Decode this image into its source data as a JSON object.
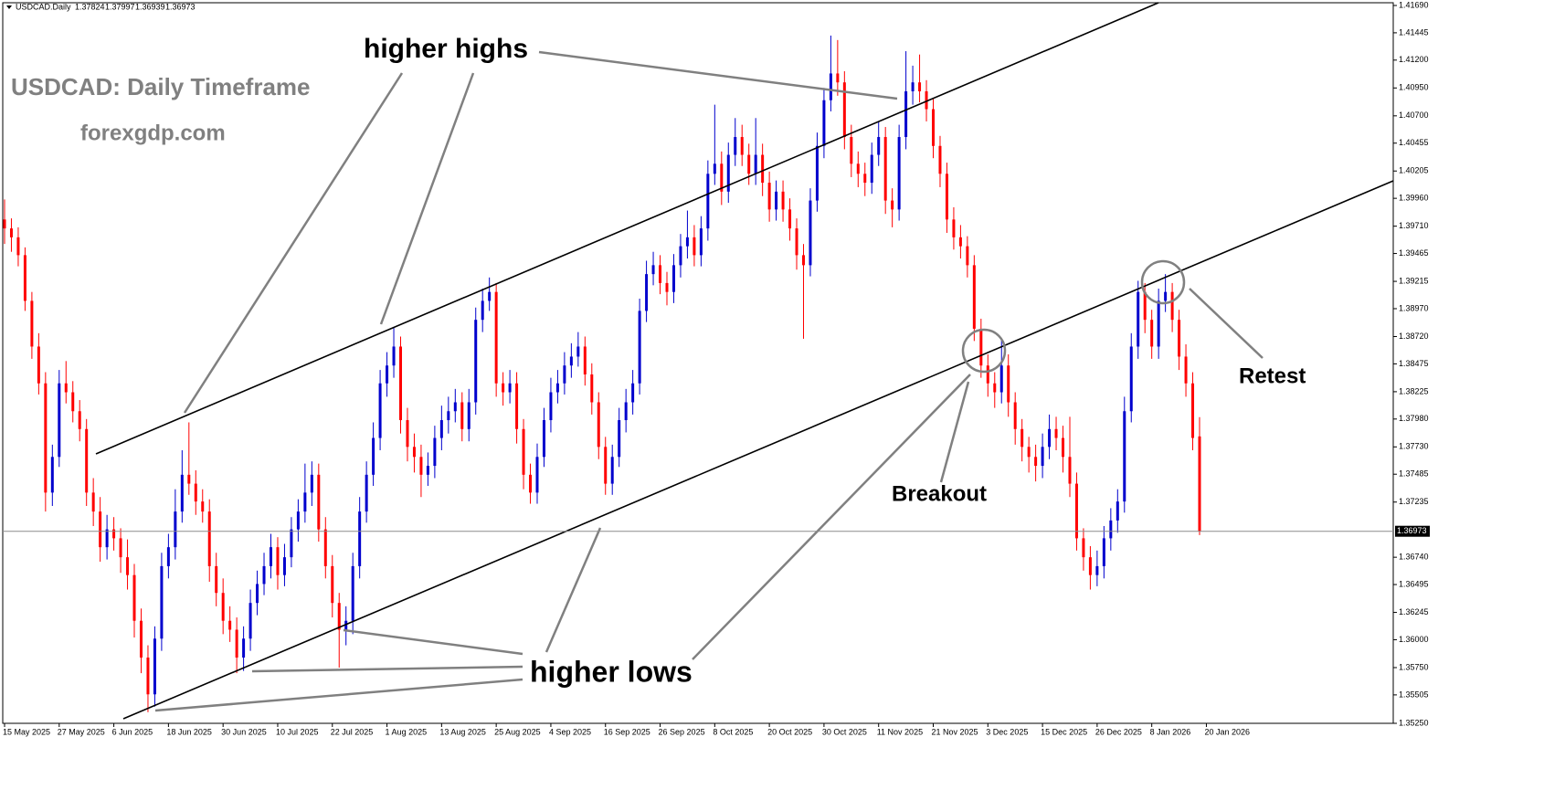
{
  "chart_data": {
    "type": "candlestick",
    "symbol": "USDCAD.Daily",
    "annotations": [
      "USDCAD: Daily Timeframe",
      "forexgdp.com",
      "higher highs",
      "higher lows",
      "Breakout",
      "Retest"
    ],
    "up_color": "#0000cd",
    "down_color": "#ff0000",
    "grid": false,
    "ylim": [
      1.3525,
      1.4169
    ],
    "xlim": [
      0,
      175
    ],
    "yticks": [
      {
        "value": 1.4169,
        "label": "1.41690"
      },
      1.41445,
      {
        "value": 1.412,
        "label": "1.41200"
      },
      {
        "value": 1.4095,
        "label": "1.40950"
      },
      {
        "value": 1.407,
        "label": "1.40700"
      },
      1.40455,
      1.40205,
      {
        "value": 1.3996,
        "label": "1.39960"
      },
      {
        "value": 1.3971,
        "label": "1.39710"
      },
      1.39465,
      1.39215,
      {
        "value": 1.3897,
        "label": "1.38970"
      },
      {
        "value": 1.3872,
        "label": "1.38720"
      },
      1.38475,
      1.38225,
      {
        "value": 1.3798,
        "label": "1.37980"
      },
      {
        "value": 1.3773,
        "label": "1.37730"
      },
      1.37485,
      1.37235,
      {
        "value": 1.3674,
        "label": "1.36740"
      },
      1.36495,
      1.36245,
      {
        "value": 1.36,
        "label": "1.36000"
      },
      {
        "value": 1.3575,
        "label": "1.35750"
      },
      1.35505,
      {
        "value": 1.3525,
        "label": "1.35250"
      }
    ],
    "xticks": [
      {
        "value": 0,
        "label": "15 May 2025"
      },
      {
        "value": 8,
        "label": "27 May 2025"
      },
      {
        "value": 16,
        "label": "6 Jun 2025"
      },
      {
        "value": 24,
        "label": "18 Jun 2025"
      },
      {
        "value": 32,
        "label": "30 Jun 2025"
      },
      {
        "value": 40,
        "label": "10 Jul 2025"
      },
      {
        "value": 48,
        "label": "22 Jul 2025"
      },
      {
        "value": 56,
        "label": "1 Aug 2025"
      },
      {
        "value": 64,
        "label": "13 Aug 2025"
      },
      {
        "value": 72,
        "label": "25 Aug 2025"
      },
      {
        "value": 80,
        "label": "4 Sep 2025"
      },
      {
        "value": 88,
        "label": "16 Sep 2025"
      },
      {
        "value": 96,
        "label": "26 Sep 2025"
      },
      {
        "value": 104,
        "label": "8 Oct 2025"
      },
      {
        "value": 112,
        "label": "20 Oct 2025"
      },
      {
        "value": 120,
        "label": "30 Oct 2025"
      },
      {
        "value": 128,
        "label": "11 Nov 2025"
      },
      {
        "value": 136,
        "label": "21 Nov 2025"
      },
      {
        "value": 144,
        "label": "3 Dec 2025"
      },
      {
        "value": 152,
        "label": "15 Dec 2025"
      },
      {
        "value": 160,
        "label": "26 Dec 2025"
      },
      {
        "value": 168,
        "label": "8 Jan 2026"
      },
      {
        "value": 176,
        "label": "20 Jan 2026"
      }
    ],
    "candles": [
      [
        1.3977,
        1.3995,
        1.3955,
        1.3969
      ],
      [
        1.3969,
        1.3978,
        1.3948,
        1.3961
      ],
      [
        1.3961,
        1.397,
        1.3935,
        1.3945
      ],
      [
        1.3945,
        1.3952,
        1.3895,
        1.3904
      ],
      [
        1.3904,
        1.3912,
        1.3852,
        1.3863
      ],
      [
        1.3863,
        1.3875,
        1.382,
        1.383
      ],
      [
        1.383,
        1.384,
        1.3715,
        1.3732
      ],
      [
        1.3732,
        1.3775,
        1.372,
        1.3764
      ],
      [
        1.3764,
        1.3842,
        1.3755,
        1.383
      ],
      [
        1.383,
        1.385,
        1.3812,
        1.3822
      ],
      [
        1.3822,
        1.3832,
        1.3795,
        1.3805
      ],
      [
        1.3805,
        1.3815,
        1.3778,
        1.3789
      ],
      [
        1.3789,
        1.3798,
        1.372,
        1.3732
      ],
      [
        1.3732,
        1.3745,
        1.3702,
        1.3715
      ],
      [
        1.3715,
        1.3728,
        1.367,
        1.3683
      ],
      [
        1.3683,
        1.3712,
        1.3672,
        1.3699
      ],
      [
        1.3699,
        1.371,
        1.368,
        1.3691
      ],
      [
        1.3691,
        1.37,
        1.366,
        1.3674
      ],
      [
        1.3674,
        1.369,
        1.3645,
        1.3658
      ],
      [
        1.3658,
        1.3668,
        1.3602,
        1.3617
      ],
      [
        1.3617,
        1.3628,
        1.357,
        1.3584
      ],
      [
        1.3584,
        1.3595,
        1.3535,
        1.3551
      ],
      [
        1.3551,
        1.3612,
        1.354,
        1.3601
      ],
      [
        1.3601,
        1.3678,
        1.359,
        1.3666
      ],
      [
        1.3666,
        1.3695,
        1.3655,
        1.3683
      ],
      [
        1.3683,
        1.3735,
        1.3672,
        1.3715
      ],
      [
        1.3715,
        1.377,
        1.3705,
        1.3748
      ],
      [
        1.3748,
        1.3795,
        1.373,
        1.374
      ],
      [
        1.374,
        1.3752,
        1.3712,
        1.3724
      ],
      [
        1.3724,
        1.3735,
        1.3705,
        1.3715
      ],
      [
        1.3715,
        1.3726,
        1.3652,
        1.3666
      ],
      [
        1.3666,
        1.3678,
        1.363,
        1.3642
      ],
      [
        1.3642,
        1.3655,
        1.3605,
        1.3617
      ],
      [
        1.3617,
        1.363,
        1.3598,
        1.3609
      ],
      [
        1.3609,
        1.362,
        1.357,
        1.3584
      ],
      [
        1.3584,
        1.3612,
        1.3572,
        1.3601
      ],
      [
        1.3601,
        1.3645,
        1.359,
        1.3633
      ],
      [
        1.3633,
        1.3662,
        1.3622,
        1.365
      ],
      [
        1.365,
        1.3678,
        1.364,
        1.3666
      ],
      [
        1.3666,
        1.3695,
        1.3655,
        1.3683
      ],
      [
        1.3683,
        1.3692,
        1.3645,
        1.3658
      ],
      [
        1.3658,
        1.3686,
        1.3648,
        1.3674
      ],
      [
        1.3674,
        1.371,
        1.3665,
        1.3699
      ],
      [
        1.3699,
        1.3726,
        1.3688,
        1.3715
      ],
      [
        1.3715,
        1.3758,
        1.3705,
        1.3732
      ],
      [
        1.3732,
        1.376,
        1.372,
        1.3748
      ],
      [
        1.3748,
        1.3758,
        1.3688,
        1.3699
      ],
      [
        1.3699,
        1.371,
        1.3655,
        1.3666
      ],
      [
        1.3666,
        1.3676,
        1.362,
        1.3633
      ],
      [
        1.3633,
        1.3642,
        1.3575,
        1.3609
      ],
      [
        1.3609,
        1.363,
        1.3595,
        1.3617
      ],
      [
        1.3617,
        1.3678,
        1.3605,
        1.3666
      ],
      [
        1.3666,
        1.3728,
        1.3655,
        1.3715
      ],
      [
        1.3715,
        1.376,
        1.3705,
        1.3748
      ],
      [
        1.3748,
        1.3795,
        1.3738,
        1.3781
      ],
      [
        1.3781,
        1.3842,
        1.377,
        1.383
      ],
      [
        1.383,
        1.3858,
        1.3818,
        1.3846
      ],
      [
        1.3846,
        1.388,
        1.3835,
        1.3863
      ],
      [
        1.3863,
        1.3872,
        1.3785,
        1.3797
      ],
      [
        1.3797,
        1.3808,
        1.376,
        1.3773
      ],
      [
        1.3773,
        1.3785,
        1.375,
        1.3764
      ],
      [
        1.3764,
        1.3775,
        1.3728,
        1.3748
      ],
      [
        1.3748,
        1.3768,
        1.3738,
        1.3756
      ],
      [
        1.3756,
        1.3792,
        1.3745,
        1.3781
      ],
      [
        1.3781,
        1.381,
        1.377,
        1.3797
      ],
      [
        1.3797,
        1.3818,
        1.3785,
        1.3805
      ],
      [
        1.3805,
        1.3825,
        1.3795,
        1.3813
      ],
      [
        1.3813,
        1.3822,
        1.3778,
        1.3789
      ],
      [
        1.3789,
        1.3825,
        1.3778,
        1.3813
      ],
      [
        1.3813,
        1.3898,
        1.3802,
        1.3887
      ],
      [
        1.3887,
        1.3915,
        1.3876,
        1.3904
      ],
      [
        1.3904,
        1.3925,
        1.3895,
        1.3912
      ],
      [
        1.3912,
        1.392,
        1.3818,
        1.383
      ],
      [
        1.383,
        1.384,
        1.381,
        1.3822
      ],
      [
        1.3822,
        1.3842,
        1.3812,
        1.383
      ],
      [
        1.383,
        1.384,
        1.3776,
        1.3789
      ],
      [
        1.3789,
        1.3798,
        1.3735,
        1.3748
      ],
      [
        1.3748,
        1.3758,
        1.3722,
        1.3732
      ],
      [
        1.3732,
        1.3776,
        1.3722,
        1.3764
      ],
      [
        1.3764,
        1.3808,
        1.3755,
        1.3797
      ],
      [
        1.3797,
        1.3835,
        1.3786,
        1.3822
      ],
      [
        1.3822,
        1.3842,
        1.3812,
        1.383
      ],
      [
        1.383,
        1.3858,
        1.382,
        1.3846
      ],
      [
        1.3846,
        1.3866,
        1.3835,
        1.3854
      ],
      [
        1.3854,
        1.3876,
        1.3845,
        1.3863
      ],
      [
        1.3863,
        1.3872,
        1.3828,
        1.3838
      ],
      [
        1.3838,
        1.3848,
        1.3802,
        1.3813
      ],
      [
        1.3813,
        1.3822,
        1.3762,
        1.3773
      ],
      [
        1.3773,
        1.3782,
        1.373,
        1.374
      ],
      [
        1.374,
        1.3775,
        1.373,
        1.3764
      ],
      [
        1.3764,
        1.3808,
        1.3755,
        1.3797
      ],
      [
        1.3797,
        1.3825,
        1.3786,
        1.3813
      ],
      [
        1.3813,
        1.3842,
        1.3802,
        1.383
      ],
      [
        1.383,
        1.3906,
        1.382,
        1.3895
      ],
      [
        1.3895,
        1.394,
        1.3885,
        1.3928
      ],
      [
        1.3928,
        1.3948,
        1.3918,
        1.3936
      ],
      [
        1.3936,
        1.3945,
        1.391,
        1.392
      ],
      [
        1.392,
        1.393,
        1.39,
        1.3912
      ],
      [
        1.3912,
        1.3946,
        1.3902,
        1.3936
      ],
      [
        1.3936,
        1.3964,
        1.3925,
        1.3953
      ],
      [
        1.3953,
        1.3985,
        1.3942,
        1.3961
      ],
      [
        1.3961,
        1.3972,
        1.3935,
        1.3945
      ],
      [
        1.3945,
        1.398,
        1.3935,
        1.3969
      ],
      [
        1.3969,
        1.403,
        1.3958,
        1.4018
      ],
      [
        1.4018,
        1.408,
        1.4008,
        1.4027
      ],
      [
        1.4027,
        1.4038,
        1.399,
        1.4002
      ],
      [
        1.4002,
        1.4046,
        1.3992,
        1.4035
      ],
      [
        1.4035,
        1.4068,
        1.4025,
        1.4051
      ],
      [
        1.4051,
        1.4062,
        1.4025,
        1.4035
      ],
      [
        1.4035,
        1.4045,
        1.4008,
        1.4018
      ],
      [
        1.4018,
        1.4068,
        1.4008,
        1.4035
      ],
      [
        1.4035,
        1.4045,
        1.3998,
        1.401
      ],
      [
        1.401,
        1.402,
        1.3975,
        1.3986
      ],
      [
        1.3986,
        1.4012,
        1.3976,
        1.4002
      ],
      [
        1.4002,
        1.4012,
        1.3975,
        1.3986
      ],
      [
        1.3986,
        1.3996,
        1.3958,
        1.3969
      ],
      [
        1.3969,
        1.3978,
        1.3932,
        1.3945
      ],
      [
        1.3945,
        1.3955,
        1.387,
        1.3936
      ],
      [
        1.3936,
        1.4005,
        1.3926,
        1.3994
      ],
      [
        1.3994,
        1.4055,
        1.3984,
        1.4043
      ],
      [
        1.4043,
        1.4095,
        1.4032,
        1.4084
      ],
      [
        1.4084,
        1.4142,
        1.4074,
        1.4108
      ],
      [
        1.4108,
        1.4138,
        1.4088,
        1.41
      ],
      [
        1.41,
        1.411,
        1.404,
        1.4051
      ],
      [
        1.4051,
        1.4062,
        1.4015,
        1.4027
      ],
      [
        1.4027,
        1.4038,
        1.4006,
        1.4018
      ],
      [
        1.4018,
        1.4028,
        1.3998,
        1.401
      ],
      [
        1.401,
        1.4046,
        1.4,
        1.4035
      ],
      [
        1.4035,
        1.4065,
        1.4025,
        1.4051
      ],
      [
        1.4051,
        1.406,
        1.3982,
        1.3994
      ],
      [
        1.3994,
        1.4005,
        1.397,
        1.3986
      ],
      [
        1.3986,
        1.4062,
        1.3976,
        1.4051
      ],
      [
        1.4051,
        1.4128,
        1.404,
        1.4092
      ],
      [
        1.4092,
        1.4115,
        1.408,
        1.41
      ],
      [
        1.41,
        1.4125,
        1.4082,
        1.4092
      ],
      [
        1.4092,
        1.4102,
        1.4065,
        1.4076
      ],
      [
        1.4076,
        1.4086,
        1.4032,
        1.4043
      ],
      [
        1.4043,
        1.4052,
        1.4006,
        1.4018
      ],
      [
        1.4018,
        1.4028,
        1.3965,
        1.3977
      ],
      [
        1.3977,
        1.3988,
        1.395,
        1.3961
      ],
      [
        1.3961,
        1.3972,
        1.3942,
        1.3953
      ],
      [
        1.3953,
        1.3962,
        1.3925,
        1.3936
      ],
      [
        1.3936,
        1.3945,
        1.3868,
        1.3879
      ],
      [
        1.3879,
        1.3888,
        1.3835,
        1.3846
      ],
      [
        1.3846,
        1.3856,
        1.3818,
        1.383
      ],
      [
        1.383,
        1.384,
        1.3808,
        1.3822
      ],
      [
        1.3822,
        1.387,
        1.3812,
        1.3846
      ],
      [
        1.3846,
        1.3856,
        1.38,
        1.3813
      ],
      [
        1.3813,
        1.3822,
        1.3775,
        1.3789
      ],
      [
        1.3789,
        1.3798,
        1.376,
        1.3773
      ],
      [
        1.3773,
        1.3782,
        1.375,
        1.3764
      ],
      [
        1.3764,
        1.3775,
        1.3742,
        1.3756
      ],
      [
        1.3756,
        1.3785,
        1.3745,
        1.3773
      ],
      [
        1.3773,
        1.3802,
        1.3762,
        1.3789
      ],
      [
        1.3789,
        1.38,
        1.377,
        1.3781
      ],
      [
        1.3781,
        1.3792,
        1.375,
        1.3764
      ],
      [
        1.3764,
        1.38,
        1.3728,
        1.374
      ],
      [
        1.374,
        1.375,
        1.368,
        1.3691
      ],
      [
        1.3691,
        1.37,
        1.3662,
        1.3674
      ],
      [
        1.3674,
        1.3684,
        1.3645,
        1.3658
      ],
      [
        1.3658,
        1.368,
        1.3648,
        1.3666
      ],
      [
        1.3666,
        1.3702,
        1.3655,
        1.3691
      ],
      [
        1.3691,
        1.3718,
        1.368,
        1.3707
      ],
      [
        1.3707,
        1.3735,
        1.3696,
        1.3724
      ],
      [
        1.3724,
        1.3818,
        1.3714,
        1.3805
      ],
      [
        1.3805,
        1.3875,
        1.3795,
        1.3863
      ],
      [
        1.3863,
        1.3922,
        1.3852,
        1.3912
      ],
      [
        1.3912,
        1.392,
        1.3875,
        1.3887
      ],
      [
        1.3887,
        1.3896,
        1.3852,
        1.3863
      ],
      [
        1.3863,
        1.3915,
        1.3852,
        1.3904
      ],
      [
        1.3904,
        1.3928,
        1.3894,
        1.3912
      ],
      [
        1.3912,
        1.392,
        1.3876,
        1.3887
      ],
      [
        1.3887,
        1.3896,
        1.3842,
        1.3854
      ],
      [
        1.3854,
        1.3865,
        1.3818,
        1.383
      ],
      [
        1.383,
        1.384,
        1.377,
        1.3781
      ],
      [
        1.37824,
        1.37997,
        1.36939,
        1.36973
      ]
    ]
  }
}
